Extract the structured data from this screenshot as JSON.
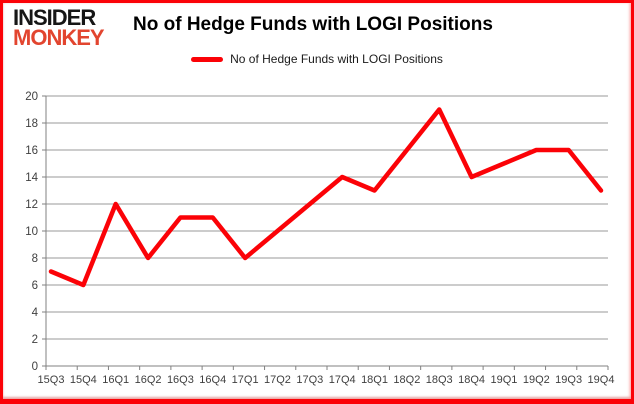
{
  "header": {
    "logo_line1": "INSIDER",
    "logo_line2": "MONKEY",
    "title": "No of Hedge Funds with LOGI Positions"
  },
  "legend": {
    "label": "No of Hedge Funds with LOGI Positions"
  },
  "colors": {
    "line": "#fb0207",
    "grid": "#9a9a9a",
    "axis": "#808080",
    "tick_text": "#3f3f3f",
    "logo_black": "#161616",
    "logo_red": "#e2452f",
    "border": "#fb0207"
  },
  "chart_data": {
    "type": "line",
    "title": "No of Hedge Funds with LOGI Positions",
    "categories": [
      "15Q3",
      "15Q4",
      "16Q1",
      "16Q2",
      "16Q3",
      "16Q4",
      "17Q1",
      "17Q2",
      "17Q3",
      "17Q4",
      "18Q1",
      "18Q2",
      "18Q3",
      "18Q4",
      "19Q1",
      "19Q2",
      "19Q3",
      "19Q4"
    ],
    "series": [
      {
        "name": "No of Hedge Funds with LOGI Positions",
        "values": [
          7,
          6,
          12,
          8,
          11,
          11,
          8,
          10,
          12,
          14,
          13,
          16,
          19,
          14,
          15,
          16,
          16,
          13
        ]
      }
    ],
    "xlabel": "",
    "ylabel": "",
    "ylim": [
      0,
      20
    ],
    "yticks": [
      0,
      2,
      4,
      6,
      8,
      10,
      12,
      14,
      16,
      18,
      20
    ],
    "grid": true,
    "legend_position": "top"
  }
}
